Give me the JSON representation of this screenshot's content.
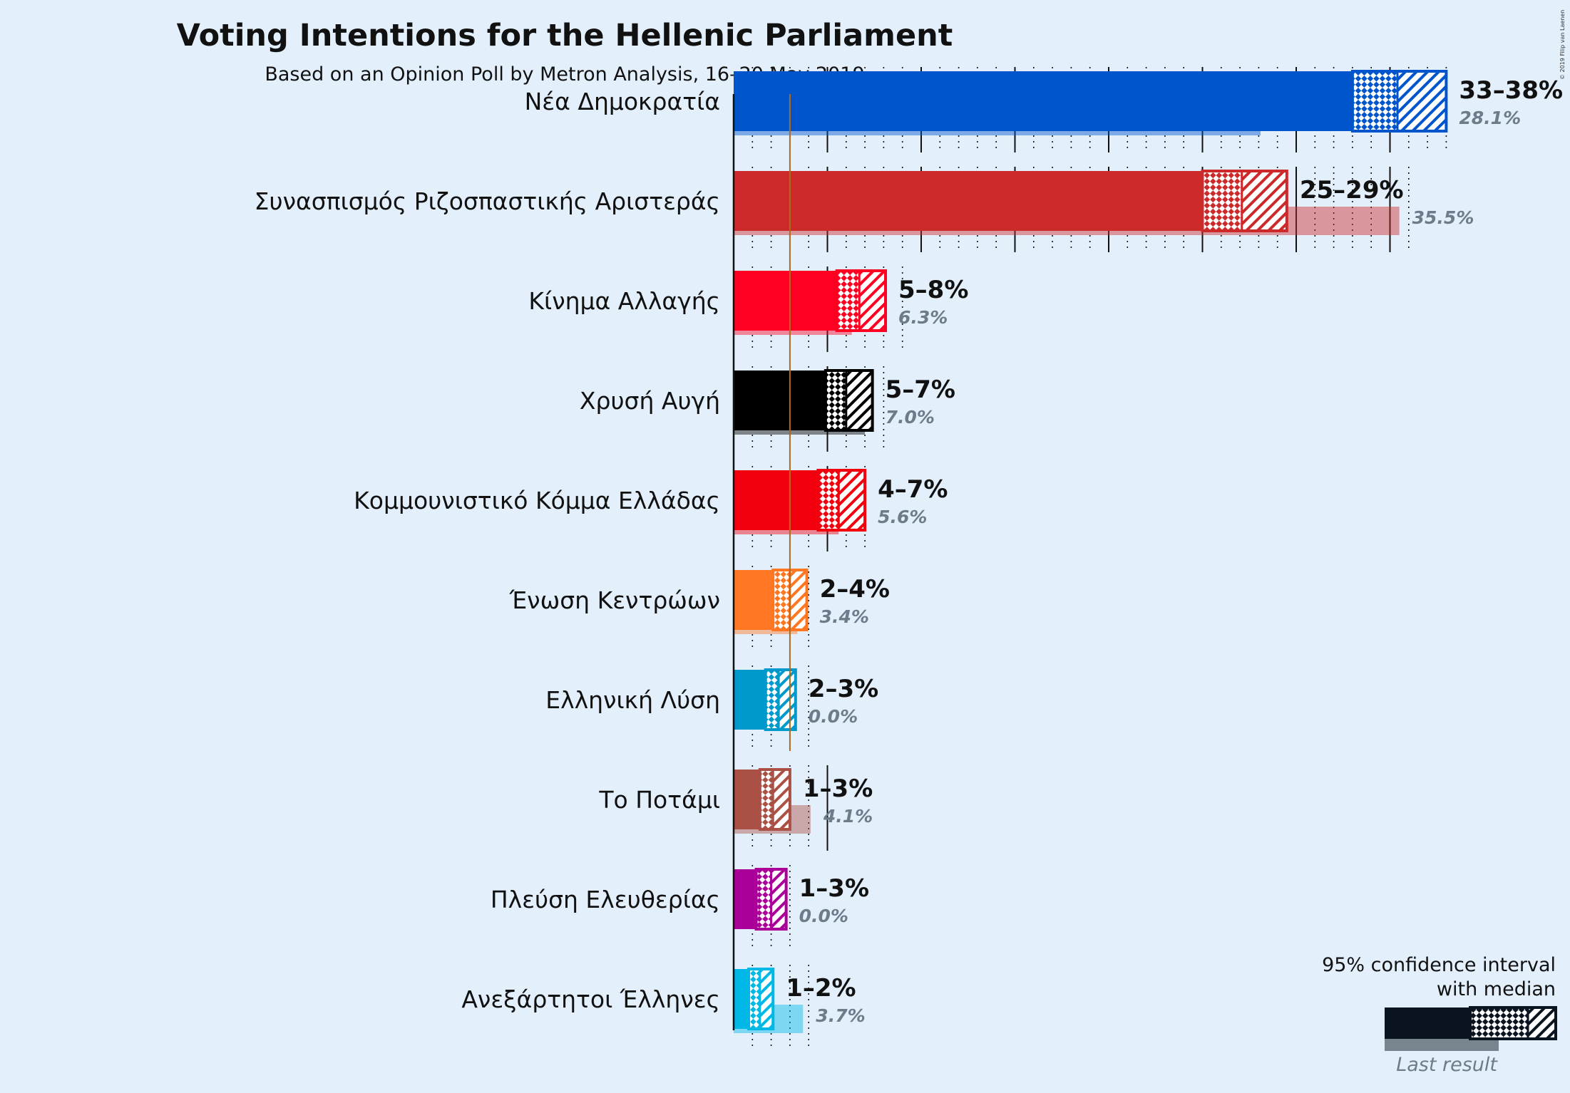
{
  "title": "Voting Intentions for the Hellenic Parliament",
  "subtitle": "Based on an Opinion Poll by Metron Analysis, 16–20 May 2019",
  "copyright": "© 2019 Filip van Laenen",
  "chart_data": {
    "type": "bar",
    "orientation": "horizontal",
    "x_unit": "%",
    "xlim": [
      0,
      38
    ],
    "threshold": 3,
    "grid": "major every 5%, minor dotted every 1%",
    "series": [
      {
        "name": "95% confidence interval",
        "kind": "interval"
      },
      {
        "name": "Last result",
        "kind": "previous"
      }
    ],
    "parties": [
      {
        "name": "Νέα Δημοκρατία",
        "color": "#0055cc",
        "low": 33,
        "median": 35.4,
        "high": 38,
        "range_label": "33–38%",
        "last": 28.1,
        "last_label": "28.1%"
      },
      {
        "name": "Συνασπισμός Ριζοσπαστικής Αριστεράς",
        "color": "#cc2a2a",
        "low": 25,
        "median": 27.1,
        "high": 29.5,
        "range_label": "25–29%",
        "last": 35.5,
        "last_label": "35.5%"
      },
      {
        "name": "Κίνημα Αλλαγής",
        "color": "#ff0022",
        "low": 5.5,
        "median": 6.7,
        "high": 8.1,
        "range_label": "5–8%",
        "last": 6.3,
        "last_label": "6.3%"
      },
      {
        "name": "Χρυσή Αυγή",
        "color": "#000000",
        "low": 4.9,
        "median": 6.0,
        "high": 7.4,
        "range_label": "5–7%",
        "last": 7.0,
        "last_label": "7.0%"
      },
      {
        "name": "Κομμουνιστικό Κόμμα Ελλάδας",
        "color": "#f2000e",
        "low": 4.5,
        "median": 5.6,
        "high": 7.0,
        "range_label": "4–7%",
        "last": 5.6,
        "last_label": "5.6%"
      },
      {
        "name": "Ένωση Κεντρώων",
        "color": "#ff7722",
        "low": 2.1,
        "median": 3.0,
        "high": 3.9,
        "range_label": "2–4%",
        "last": 3.4,
        "last_label": "3.4%"
      },
      {
        "name": "Ελληνική Λύση",
        "color": "#0099cc",
        "low": 1.7,
        "median": 2.4,
        "high": 3.3,
        "range_label": "2–3%",
        "last": 0.0,
        "last_label": "0.0%"
      },
      {
        "name": "Το Ποτάμι",
        "color": "#aa5044",
        "low": 1.4,
        "median": 2.1,
        "high": 3.0,
        "range_label": "1–3%",
        "last": 4.1,
        "last_label": "4.1%"
      },
      {
        "name": "Πλεύση Ελευθερίας",
        "color": "#aa0099",
        "low": 1.2,
        "median": 2.0,
        "high": 2.8,
        "range_label": "1–3%",
        "last": 0.0,
        "last_label": "0.0%"
      },
      {
        "name": "Ανεξάρτητοι Έλληνες",
        "color": "#00b8e6",
        "low": 0.8,
        "median": 1.4,
        "high": 2.1,
        "range_label": "1–2%",
        "last": 3.7,
        "last_label": "3.7%"
      }
    ]
  },
  "legend": {
    "line1": "95% confidence interval",
    "line2": "with median",
    "last": "Last result"
  }
}
